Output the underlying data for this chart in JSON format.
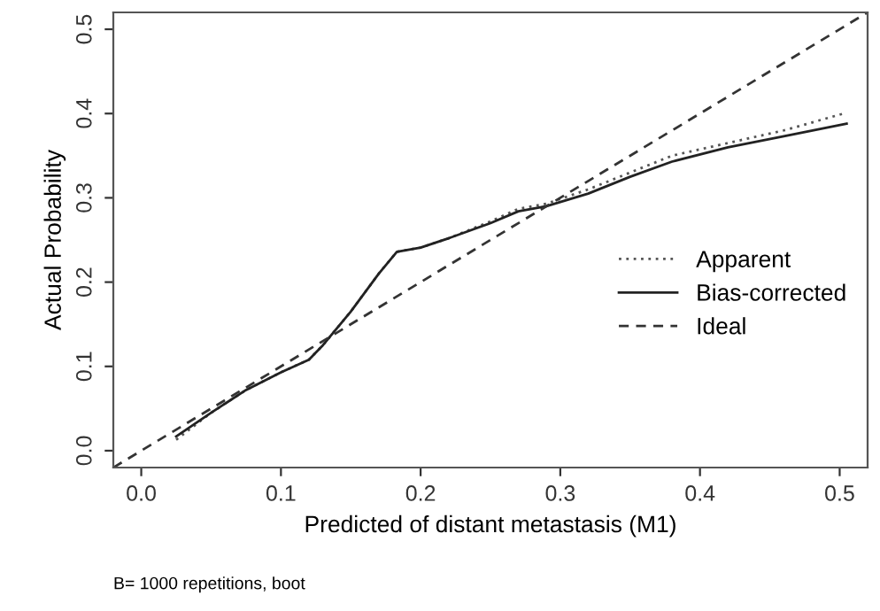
{
  "chart_data": {
    "type": "line",
    "xlabel": "Predicted of distant metastasis (M1)",
    "ylabel": "Actual Probability",
    "annotations": [
      "B= 1000 repetitions, boot"
    ],
    "xlim": [
      -0.02,
      0.52
    ],
    "ylim": [
      -0.02,
      0.52
    ],
    "xticks": [
      {
        "value": 0,
        "label": "0.0"
      },
      0.1,
      0.2,
      0.3,
      0.4,
      0.5
    ],
    "yticks": [
      {
        "value": 0,
        "label": "0.0"
      },
      0.1,
      0.2,
      0.3,
      0.4,
      0.5
    ],
    "grid": false,
    "legend": "right",
    "series": [
      {
        "name": "Apparent",
        "color": "#555555",
        "line_style": "dotted",
        "x": [
          0.025,
          0.05,
          0.075,
          0.1,
          0.12,
          0.13,
          0.15,
          0.17,
          0.183,
          0.2,
          0.22,
          0.25,
          0.27,
          0.29,
          0.32,
          0.35,
          0.38,
          0.42,
          0.46,
          0.505
        ],
        "values": [
          0.013,
          0.045,
          0.072,
          0.093,
          0.108,
          0.125,
          0.165,
          0.21,
          0.236,
          0.241,
          0.252,
          0.272,
          0.287,
          0.293,
          0.31,
          0.33,
          0.35,
          0.365,
          0.38,
          0.401
        ]
      },
      {
        "name": "Bias-corrected",
        "color": "#222222",
        "line_style": "solid",
        "x": [
          0.025,
          0.05,
          0.075,
          0.1,
          0.12,
          0.13,
          0.15,
          0.17,
          0.183,
          0.2,
          0.22,
          0.25,
          0.27,
          0.29,
          0.32,
          0.35,
          0.38,
          0.42,
          0.46,
          0.505
        ],
        "values": [
          0.017,
          0.045,
          0.072,
          0.093,
          0.108,
          0.125,
          0.165,
          0.21,
          0.236,
          0.241,
          0.252,
          0.27,
          0.284,
          0.29,
          0.305,
          0.325,
          0.343,
          0.36,
          0.373,
          0.388
        ]
      },
      {
        "name": "Ideal",
        "color": "#333333",
        "line_style": "dashed",
        "x": [
          -0.02,
          0.52
        ],
        "values": [
          -0.02,
          0.52
        ]
      }
    ]
  }
}
